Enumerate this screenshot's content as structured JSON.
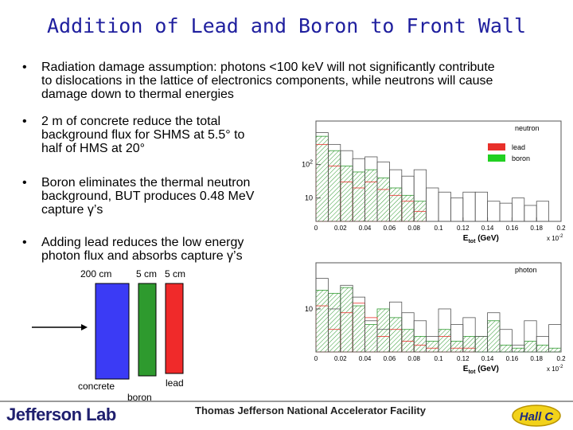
{
  "slide": {
    "title": "Addition of Lead and Boron to Front Wall",
    "bullet_glyph": "•",
    "bullets": [
      {
        "lines": [
          "Radiation damage assumption: photons <100 keV will not significantly contribute",
          "to dislocations in the lattice of electronics components, while neutrons will cause",
          "damage down to thermal energies"
        ]
      },
      {
        "lines": [
          "2 m of concrete reduce the total",
          "background flux for SHMS at 5.5° to",
          "half of HMS at 20°"
        ]
      },
      {
        "lines": [
          "Boron eliminates the thermal neutron",
          "background, BUT produces 0.48 MeV",
          "capture γ’s"
        ]
      },
      {
        "lines": [
          "Adding lead reduces the low energy",
          "photon flux and absorbs capture γ’s"
        ]
      }
    ]
  },
  "diagram": {
    "labels": {
      "concrete_thickness": "200 cm",
      "boron_thickness": "5 cm",
      "lead_thickness": "5 cm",
      "concrete": "concrete",
      "boron": "boron",
      "lead": "lead"
    },
    "colors": {
      "concrete": "#3b3bf5",
      "boron": "#2e9a2e",
      "lead": "#f02a2a"
    }
  },
  "chart_data": [
    {
      "type": "bar",
      "title": "neutron",
      "xlabel": "E_tot (GeV)",
      "x_multiplier": "x 10^-2",
      "xlim": [
        0,
        0.2
      ],
      "x_ticks": [
        "0",
        "0.02",
        "0.04",
        "0.06",
        "0.08",
        "0.1",
        "0.12",
        "0.14",
        "0.16",
        "0.18",
        "0.2"
      ],
      "y_ticks": [
        "10^2",
        "10"
      ],
      "yscale": "log",
      "legend": {
        "placement": "top-right",
        "entries": [
          {
            "name": "lead",
            "color": "#e8302a"
          },
          {
            "name": "boron",
            "color": "#22d022"
          }
        ]
      },
      "bin_width": 0.01,
      "series": [
        {
          "name": "total",
          "x": [
            0,
            0.01,
            0.02,
            0.03,
            0.04,
            0.05,
            0.06,
            0.07,
            0.08,
            0.09,
            0.1,
            0.11,
            0.12,
            0.13,
            0.14,
            0.15,
            0.16,
            0.17,
            0.18,
            0.19
          ],
          "values": [
            900,
            400,
            260,
            150,
            170,
            120,
            70,
            45,
            70,
            20,
            15,
            10,
            15,
            15,
            8,
            7,
            10,
            6,
            8,
            0
          ]
        },
        {
          "name": "lead",
          "x": [
            0,
            0.01,
            0.02,
            0.03,
            0.04,
            0.05,
            0.06,
            0.07,
            0.08
          ],
          "values": [
            400,
            90,
            30,
            20,
            30,
            18,
            12,
            8,
            4
          ]
        },
        {
          "name": "boron",
          "x": [
            0,
            0.01,
            0.02,
            0.03,
            0.04,
            0.05,
            0.06,
            0.07,
            0.08
          ],
          "values": [
            700,
            260,
            90,
            60,
            70,
            40,
            20,
            12,
            8
          ]
        }
      ]
    },
    {
      "type": "bar",
      "title": "photon",
      "xlabel": "E_tot (GeV)",
      "x_multiplier": "x 10^-2",
      "xlim": [
        0,
        0.2
      ],
      "x_ticks": [
        "0",
        "0.02",
        "0.04",
        "0.06",
        "0.08",
        "0.1",
        "0.12",
        "0.14",
        "0.16",
        "0.18",
        "0.2"
      ],
      "y_ticks": [
        "10"
      ],
      "yscale": "log",
      "bin_width": 0.01,
      "series": [
        {
          "name": "total",
          "x": [
            0,
            0.01,
            0.02,
            0.03,
            0.04,
            0.05,
            0.06,
            0.07,
            0.08,
            0.09,
            0.1,
            0.11,
            0.12,
            0.13,
            0.14,
            0.15,
            0.16,
            0.17,
            0.18,
            0.19
          ],
          "values": [
            60,
            10,
            40,
            20,
            5,
            3,
            15,
            8,
            5,
            2,
            10,
            4,
            6,
            2,
            8,
            3,
            1.2,
            5,
            2,
            4
          ]
        },
        {
          "name": "lead",
          "x": [
            0,
            0.01,
            0.02,
            0.03,
            0.04,
            0.05,
            0.06,
            0.07,
            0.08,
            0.09,
            0.1,
            0.11,
            0.12
          ],
          "values": [
            12,
            3,
            8,
            14,
            6,
            2,
            3,
            1.5,
            1.2,
            1,
            2,
            1,
            1
          ]
        },
        {
          "name": "boron",
          "x": [
            0,
            0.01,
            0.02,
            0.03,
            0.04,
            0.05,
            0.06,
            0.07,
            0.08,
            0.09,
            0.1,
            0.11,
            0.12,
            0.13,
            0.14,
            0.15,
            0.16,
            0.17,
            0.18,
            0.19
          ],
          "values": [
            30,
            25,
            35,
            12,
            4,
            10,
            6,
            3,
            2,
            1.5,
            3,
            1.5,
            2,
            2,
            5,
            1.2,
            1,
            1.5,
            1.2,
            1
          ]
        }
      ]
    }
  ],
  "footer": {
    "logo_text": "Jefferson Lab",
    "facility": "Thomas Jefferson National Accelerator Facility",
    "hall_logo": "Hall C"
  }
}
